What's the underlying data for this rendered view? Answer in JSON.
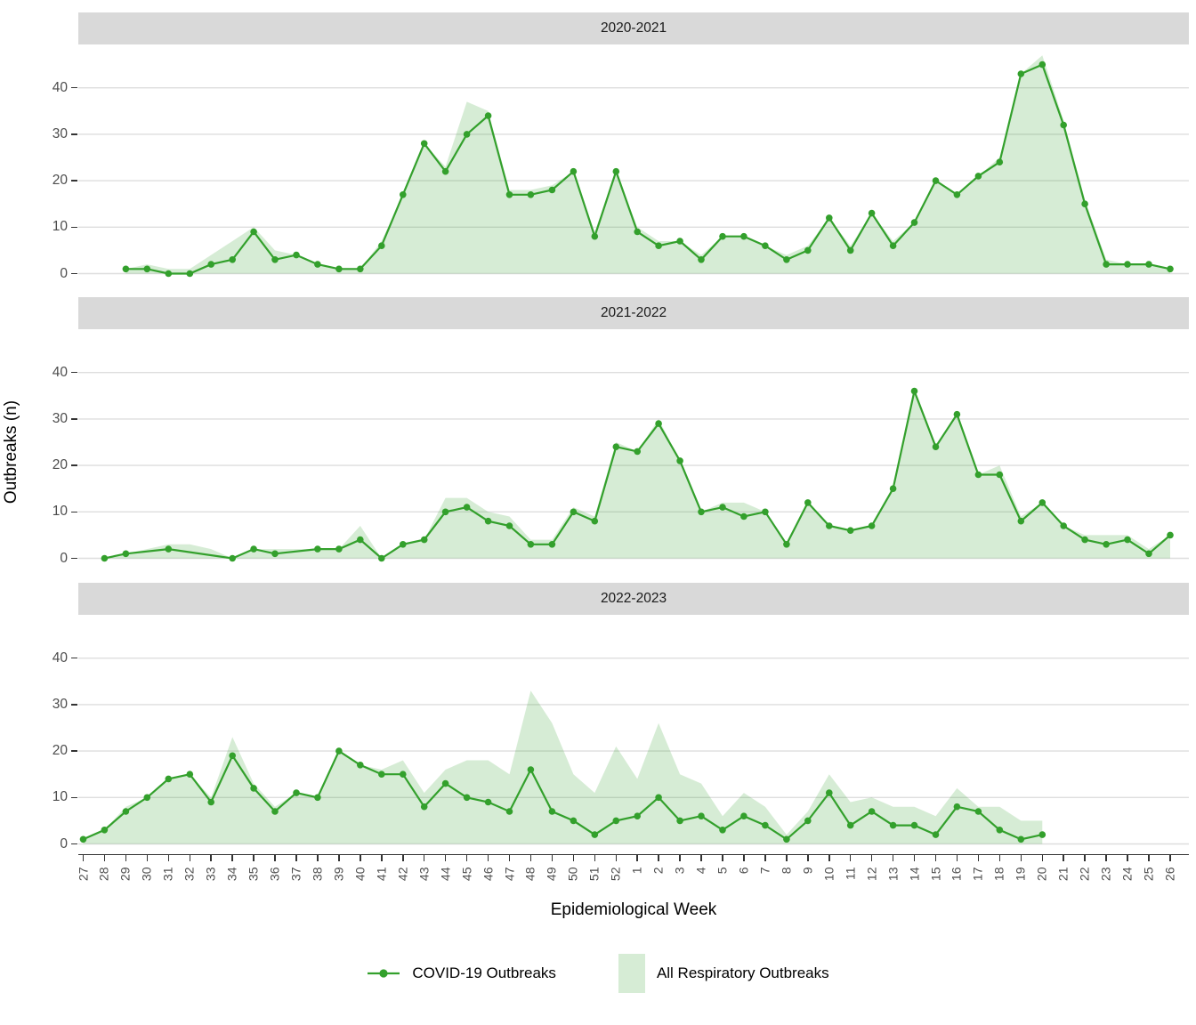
{
  "y_axis": {
    "title": "Outbreaks (n)",
    "ticks": [
      0,
      10,
      20,
      30,
      40
    ]
  },
  "x_axis": {
    "title": "Epidemiological Week",
    "weeks": [
      27,
      28,
      29,
      30,
      31,
      32,
      33,
      34,
      35,
      36,
      37,
      38,
      39,
      40,
      41,
      42,
      43,
      44,
      45,
      46,
      47,
      48,
      49,
      50,
      51,
      52,
      1,
      2,
      3,
      4,
      5,
      6,
      7,
      8,
      9,
      10,
      11,
      12,
      13,
      14,
      15,
      16,
      17,
      18,
      19,
      20,
      21,
      22,
      23,
      24,
      25,
      26
    ]
  },
  "legend": {
    "items": [
      {
        "label": "COVID-19 Outbreaks",
        "type": "line-point"
      },
      {
        "label": "All Respiratory Outbreaks",
        "type": "area"
      }
    ]
  },
  "colors": {
    "line": "#33a02c",
    "area_fill": "rgba(51,160,44,0.2)",
    "strip_bg": "#d9d9d9",
    "grid": "#dedede",
    "axis_text": "#4d4d4d",
    "tick": "#333333",
    "text": "#000000"
  },
  "chart_data": [
    {
      "type": "line+area",
      "facet": "2020-2021",
      "point_format": [
        "week",
        "covid_outbreaks",
        "all_respiratory_outbreaks"
      ],
      "points": [
        [
          29,
          1,
          1
        ],
        [
          30,
          1,
          2
        ],
        [
          31,
          0,
          1
        ],
        [
          32,
          0,
          1
        ],
        [
          33,
          2,
          4
        ],
        [
          34,
          3,
          7
        ],
        [
          35,
          9,
          10
        ],
        [
          36,
          3,
          5
        ],
        [
          37,
          4,
          4
        ],
        [
          38,
          2,
          2
        ],
        [
          39,
          1,
          1
        ],
        [
          40,
          1,
          1
        ],
        [
          41,
          6,
          7
        ],
        [
          42,
          17,
          17
        ],
        [
          43,
          28,
          28
        ],
        [
          44,
          22,
          23
        ],
        [
          45,
          30,
          37
        ],
        [
          46,
          34,
          35
        ],
        [
          47,
          17,
          18
        ],
        [
          48,
          17,
          18
        ],
        [
          49,
          18,
          19
        ],
        [
          50,
          22,
          22
        ],
        [
          51,
          8,
          9
        ],
        [
          52,
          22,
          22
        ],
        [
          1,
          9,
          10
        ],
        [
          2,
          6,
          7
        ],
        [
          3,
          7,
          7
        ],
        [
          4,
          3,
          4
        ],
        [
          5,
          8,
          8
        ],
        [
          6,
          8,
          8
        ],
        [
          7,
          6,
          6
        ],
        [
          8,
          3,
          4
        ],
        [
          9,
          5,
          6
        ],
        [
          10,
          12,
          12
        ],
        [
          11,
          5,
          6
        ],
        [
          12,
          13,
          13
        ],
        [
          13,
          6,
          7
        ],
        [
          14,
          11,
          11
        ],
        [
          15,
          20,
          20
        ],
        [
          16,
          17,
          17
        ],
        [
          17,
          21,
          21
        ],
        [
          18,
          24,
          25
        ],
        [
          19,
          43,
          43
        ],
        [
          20,
          45,
          47
        ],
        [
          21,
          32,
          33
        ],
        [
          22,
          15,
          16
        ],
        [
          23,
          2,
          3
        ],
        [
          24,
          2,
          2
        ],
        [
          25,
          2,
          2
        ],
        [
          26,
          1,
          1
        ]
      ]
    },
    {
      "type": "line+area",
      "facet": "2021-2022",
      "point_format": [
        "week",
        "covid_outbreaks",
        "all_respiratory_outbreaks"
      ],
      "points": [
        [
          28,
          0,
          0
        ],
        [
          29,
          1,
          1
        ],
        [
          30,
          null,
          2
        ],
        [
          31,
          2,
          3
        ],
        [
          32,
          null,
          3
        ],
        [
          33,
          null,
          2
        ],
        [
          34,
          0,
          0
        ],
        [
          35,
          2,
          2
        ],
        [
          36,
          1,
          2
        ],
        [
          37,
          null,
          2
        ],
        [
          38,
          2,
          2
        ],
        [
          39,
          2,
          2
        ],
        [
          40,
          4,
          7
        ],
        [
          41,
          0,
          0
        ],
        [
          42,
          3,
          3
        ],
        [
          43,
          4,
          4
        ],
        [
          44,
          10,
          13
        ],
        [
          45,
          11,
          13
        ],
        [
          46,
          8,
          10
        ],
        [
          47,
          7,
          9
        ],
        [
          48,
          3,
          4
        ],
        [
          49,
          3,
          4
        ],
        [
          50,
          10,
          11
        ],
        [
          51,
          8,
          9
        ],
        [
          52,
          24,
          25
        ],
        [
          1,
          23,
          23
        ],
        [
          2,
          29,
          30
        ],
        [
          3,
          21,
          21
        ],
        [
          4,
          10,
          10
        ],
        [
          5,
          11,
          12
        ],
        [
          6,
          9,
          12
        ],
        [
          7,
          10,
          10
        ],
        [
          8,
          3,
          3
        ],
        [
          9,
          12,
          12
        ],
        [
          10,
          7,
          7
        ],
        [
          11,
          6,
          6
        ],
        [
          12,
          7,
          7
        ],
        [
          13,
          15,
          15
        ],
        [
          14,
          36,
          36
        ],
        [
          15,
          24,
          24
        ],
        [
          16,
          31,
          31
        ],
        [
          17,
          18,
          18
        ],
        [
          18,
          18,
          20
        ],
        [
          19,
          8,
          9
        ],
        [
          20,
          12,
          12
        ],
        [
          21,
          7,
          7
        ],
        [
          22,
          4,
          5
        ],
        [
          23,
          3,
          5
        ],
        [
          24,
          4,
          5
        ],
        [
          25,
          1,
          2
        ],
        [
          26,
          5,
          5
        ]
      ]
    },
    {
      "type": "line+area",
      "facet": "2022-2023",
      "point_format": [
        "week",
        "covid_outbreaks",
        "all_respiratory_outbreaks"
      ],
      "points": [
        [
          27,
          1,
          1
        ],
        [
          28,
          3,
          3
        ],
        [
          29,
          7,
          8
        ],
        [
          30,
          10,
          10
        ],
        [
          31,
          14,
          14
        ],
        [
          32,
          15,
          15
        ],
        [
          33,
          9,
          10
        ],
        [
          34,
          19,
          23
        ],
        [
          35,
          12,
          13
        ],
        [
          36,
          7,
          8
        ],
        [
          37,
          11,
          11
        ],
        [
          38,
          10,
          10
        ],
        [
          39,
          20,
          20
        ],
        [
          40,
          17,
          17
        ],
        [
          41,
          15,
          16
        ],
        [
          42,
          15,
          18
        ],
        [
          43,
          8,
          11
        ],
        [
          44,
          13,
          16
        ],
        [
          45,
          10,
          18
        ],
        [
          46,
          9,
          18
        ],
        [
          47,
          7,
          15
        ],
        [
          48,
          16,
          33
        ],
        [
          49,
          7,
          26
        ],
        [
          50,
          5,
          15
        ],
        [
          51,
          2,
          11
        ],
        [
          52,
          5,
          21
        ],
        [
          1,
          6,
          14
        ],
        [
          2,
          10,
          26
        ],
        [
          3,
          5,
          15
        ],
        [
          4,
          6,
          13
        ],
        [
          5,
          3,
          6
        ],
        [
          6,
          6,
          11
        ],
        [
          7,
          4,
          8
        ],
        [
          8,
          1,
          2
        ],
        [
          9,
          5,
          7
        ],
        [
          10,
          11,
          15
        ],
        [
          11,
          4,
          9
        ],
        [
          12,
          7,
          10
        ],
        [
          13,
          4,
          8
        ],
        [
          14,
          4,
          8
        ],
        [
          15,
          2,
          6
        ],
        [
          16,
          8,
          12
        ],
        [
          17,
          7,
          8
        ],
        [
          18,
          3,
          8
        ],
        [
          19,
          1,
          5
        ],
        [
          20,
          2,
          5
        ]
      ]
    }
  ]
}
